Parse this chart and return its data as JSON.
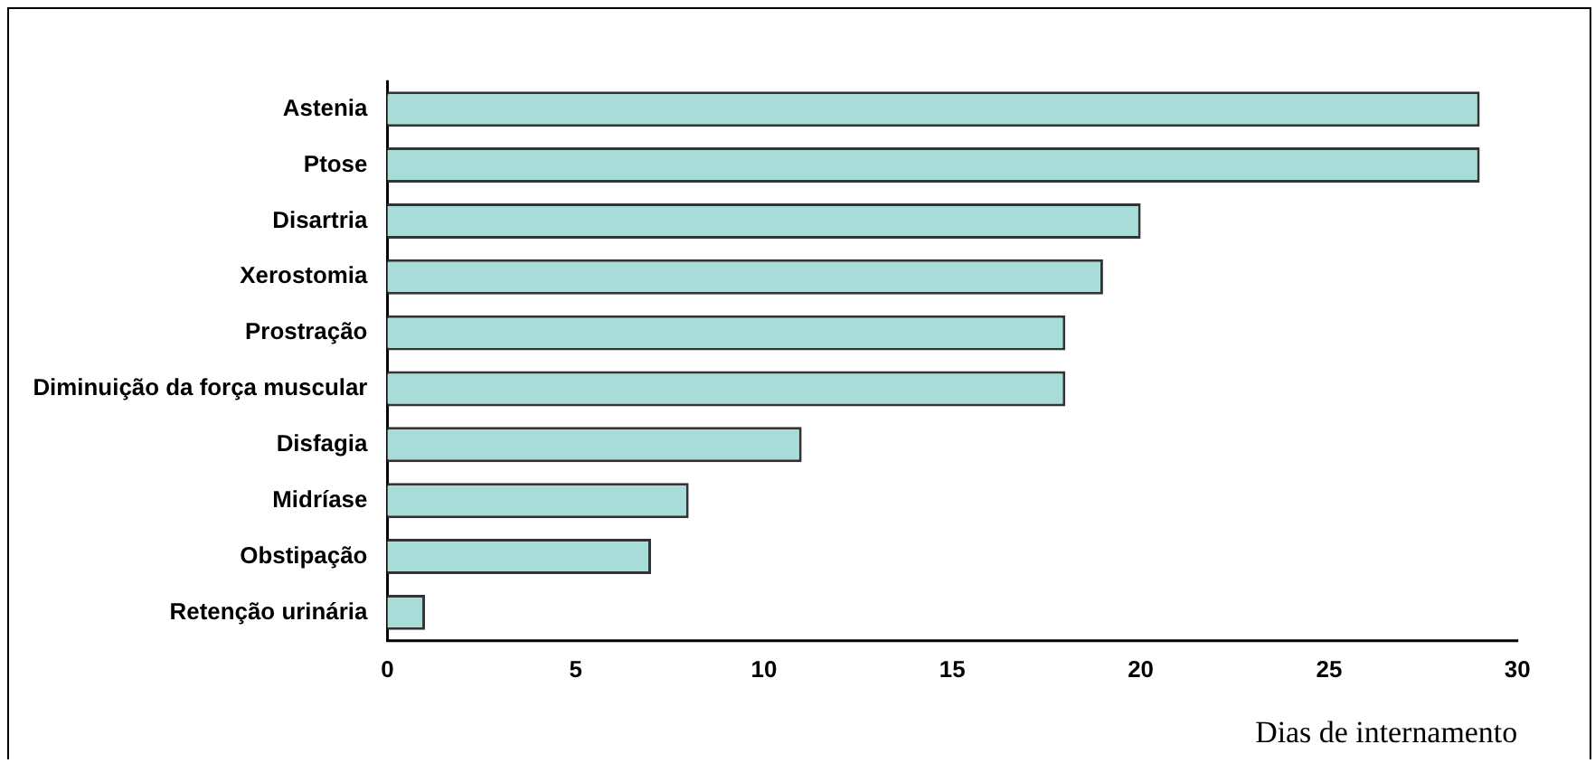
{
  "chart_data": {
    "type": "bar",
    "orientation": "horizontal",
    "xlabel": "Dias de internamento",
    "categories": [
      "Astenia",
      "Ptose",
      "Disartria",
      "Xerostomia",
      "Prostração",
      "Diminuição da força muscular",
      "Disfagia",
      "Midríase",
      "Obstipação",
      "Retenção urinária"
    ],
    "values": [
      29,
      29,
      20,
      19,
      18,
      18,
      11,
      8,
      7,
      1
    ],
    "color": "#a8dcd8",
    "xlim": [
      0,
      30
    ],
    "xticks": [
      0,
      5,
      10,
      15,
      20,
      25,
      30
    ],
    "grid": false,
    "legend": false
  }
}
